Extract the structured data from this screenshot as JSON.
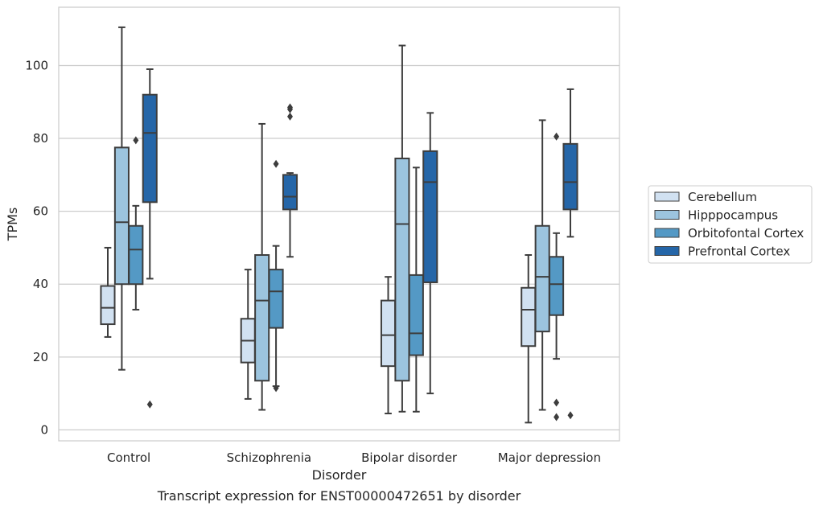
{
  "chart_data": {
    "type": "box",
    "xlabel": "Disorder",
    "ylabel": "TPMs",
    "caption": "Transcript expression for ENST00000472651 by disorder",
    "ylim": [
      -3,
      116
    ],
    "yticks": [
      0,
      20,
      40,
      60,
      80,
      100
    ],
    "grid": true,
    "legend_position": "right",
    "categories": [
      "Control",
      "Schizophrenia",
      "Bipolar disorder",
      "Major depression"
    ],
    "series": [
      {
        "name": "Cerebellum",
        "color": "#d1e1f1",
        "boxes": [
          {
            "whislo": 25.5,
            "q1": 29,
            "med": 33.5,
            "q3": 39.5,
            "whishi": 50,
            "fliers": []
          },
          {
            "whislo": 8.5,
            "q1": 18.5,
            "med": 24.5,
            "q3": 30.5,
            "whishi": 44,
            "fliers": []
          },
          {
            "whislo": 4.5,
            "q1": 17.5,
            "med": 26,
            "q3": 35.5,
            "whishi": 42,
            "fliers": []
          },
          {
            "whislo": 2,
            "q1": 23,
            "med": 33,
            "q3": 39,
            "whishi": 48,
            "fliers": []
          }
        ]
      },
      {
        "name": "Hipppocampus",
        "color": "#9cc4de",
        "boxes": [
          {
            "whislo": 16.5,
            "q1": 40,
            "med": 57,
            "q3": 77.5,
            "whishi": 110.5,
            "fliers": []
          },
          {
            "whislo": 5.5,
            "q1": 13.5,
            "med": 35.5,
            "q3": 48,
            "whishi": 84,
            "fliers": []
          },
          {
            "whislo": 5,
            "q1": 13.5,
            "med": 56.5,
            "q3": 74.5,
            "whishi": 105.5,
            "fliers": []
          },
          {
            "whislo": 5.5,
            "q1": 27,
            "med": 42,
            "q3": 56,
            "whishi": 85,
            "fliers": []
          }
        ]
      },
      {
        "name": "Orbitofontal Cortex",
        "color": "#5499c5",
        "boxes": [
          {
            "whislo": 33,
            "q1": 40,
            "med": 49.5,
            "q3": 56,
            "whishi": 61.5,
            "fliers": [
              79.5
            ]
          },
          {
            "whislo": 12,
            "q1": 28,
            "med": 38,
            "q3": 44,
            "whishi": 50.5,
            "fliers": [
              73,
              11.5
            ]
          },
          {
            "whislo": 5,
            "q1": 20.5,
            "med": 26.5,
            "q3": 42.5,
            "whishi": 72,
            "fliers": []
          },
          {
            "whislo": 19.5,
            "q1": 31.5,
            "med": 40,
            "q3": 47.5,
            "whishi": 54,
            "fliers": [
              80.5,
              7.5,
              3.5
            ]
          }
        ]
      },
      {
        "name": "Prefrontal Cortex",
        "color": "#2566a8",
        "boxes": [
          {
            "whislo": 41.5,
            "q1": 62.5,
            "med": 81.5,
            "q3": 92,
            "whishi": 99,
            "fliers": [
              7
            ]
          },
          {
            "whislo": 47.5,
            "q1": 60.5,
            "med": 64,
            "q3": 70,
            "whishi": 70.5,
            "fliers": [
              88.5,
              88,
              86
            ]
          },
          {
            "whislo": 10,
            "q1": 40.5,
            "med": 68,
            "q3": 76.5,
            "whishi": 87,
            "fliers": []
          },
          {
            "whislo": 53,
            "q1": 60.5,
            "med": 68,
            "q3": 78.5,
            "whishi": 93.5,
            "fliers": [
              4
            ]
          }
        ]
      }
    ]
  }
}
